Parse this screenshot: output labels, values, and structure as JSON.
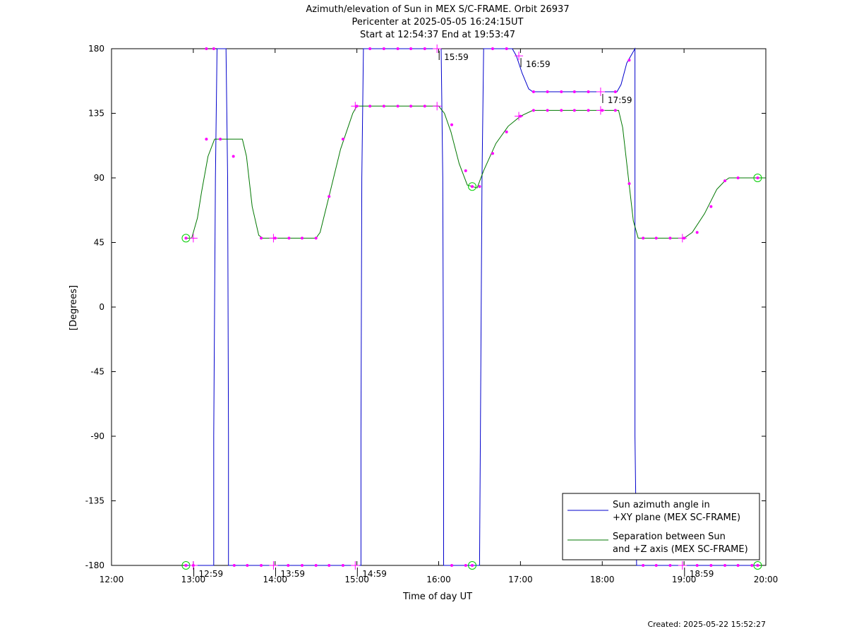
{
  "chart_data": {
    "type": "line",
    "title_lines": [
      "Azimuth/elevation of Sun in MEX S/C-FRAME.  Orbit 26937",
      "Pericenter at 2025-05-05 16:24:15UT",
      "Start at 12:54:37 End at 19:53:47"
    ],
    "xlabel": "Time of day UT",
    "ylabel": "[Degrees]",
    "xlim": [
      12.0,
      20.0
    ],
    "ylim": [
      -180,
      180
    ],
    "xticks": [
      12,
      13,
      14,
      15,
      16,
      17,
      18,
      19,
      20
    ],
    "xtick_labels": [
      "12:00",
      "13:00",
      "14:00",
      "15:00",
      "16:00",
      "17:00",
      "18:00",
      "19:00",
      "20:00"
    ],
    "yticks": [
      180,
      135,
      90,
      45,
      0,
      -45,
      -90,
      -135,
      -180
    ],
    "ytick_labels": [
      "180",
      "135",
      "90",
      "45",
      "0",
      "-45",
      "-90",
      "-135",
      "-180"
    ],
    "legend_position": "bottom-right",
    "series": [
      {
        "name": "Sun azimuth angle in +XY plane (MEX SC-FRAME)",
        "color": "#0000cc",
        "points": [
          [
            12.91,
            -180
          ],
          [
            13.25,
            -180
          ],
          [
            13.25,
            -90
          ],
          [
            13.27,
            90
          ],
          [
            13.29,
            180
          ],
          [
            13.4,
            180
          ],
          [
            13.42,
            90
          ],
          [
            13.43,
            -90
          ],
          [
            13.43,
            -180
          ],
          [
            15.05,
            -180
          ],
          [
            15.05,
            -90
          ],
          [
            15.06,
            90
          ],
          [
            15.08,
            180
          ],
          [
            16.03,
            180
          ],
          [
            16.05,
            90
          ],
          [
            16.06,
            -90
          ],
          [
            16.06,
            -180
          ],
          [
            16.5,
            -180
          ],
          [
            16.51,
            -90
          ],
          [
            16.53,
            90
          ],
          [
            16.55,
            180
          ],
          [
            16.9,
            180
          ],
          [
            16.95,
            175
          ],
          [
            17.02,
            163
          ],
          [
            17.1,
            152
          ],
          [
            17.15,
            150
          ],
          [
            18.18,
            150
          ],
          [
            18.23,
            155
          ],
          [
            18.3,
            170
          ],
          [
            18.4,
            180
          ],
          [
            18.4,
            -90
          ],
          [
            18.42,
            -180
          ],
          [
            19.91,
            -180
          ]
        ]
      },
      {
        "name": "Separation between Sun and +Z axis (MEX SC-FRAME)",
        "color": "#007700",
        "points": [
          [
            12.91,
            48
          ],
          [
            12.98,
            48
          ],
          [
            13.05,
            62
          ],
          [
            13.1,
            80
          ],
          [
            13.18,
            105
          ],
          [
            13.26,
            117
          ],
          [
            13.6,
            117
          ],
          [
            13.65,
            105
          ],
          [
            13.72,
            70
          ],
          [
            13.8,
            50
          ],
          [
            13.85,
            48
          ],
          [
            14.5,
            48
          ],
          [
            14.55,
            52
          ],
          [
            14.65,
            75
          ],
          [
            14.8,
            110
          ],
          [
            14.95,
            135
          ],
          [
            15.0,
            140
          ],
          [
            16.0,
            140
          ],
          [
            16.07,
            135
          ],
          [
            16.15,
            122
          ],
          [
            16.25,
            100
          ],
          [
            16.35,
            85
          ],
          [
            16.47,
            83
          ],
          [
            16.55,
            95
          ],
          [
            16.7,
            114
          ],
          [
            16.85,
            126
          ],
          [
            17.0,
            133
          ],
          [
            17.15,
            137
          ],
          [
            18.2,
            137
          ],
          [
            18.25,
            125
          ],
          [
            18.32,
            90
          ],
          [
            18.38,
            60
          ],
          [
            18.44,
            48
          ],
          [
            19.0,
            48
          ],
          [
            19.1,
            52
          ],
          [
            19.25,
            65
          ],
          [
            19.4,
            82
          ],
          [
            19.5,
            88
          ],
          [
            19.55,
            90
          ],
          [
            20.0,
            90
          ]
        ]
      }
    ],
    "markers": [
      [
        13.16,
        117
      ],
      [
        13.33,
        117
      ],
      [
        13.25,
        180
      ],
      [
        13.49,
        105
      ],
      [
        13.83,
        48
      ],
      [
        14.0,
        48
      ],
      [
        14.17,
        48
      ],
      [
        14.33,
        48
      ],
      [
        14.5,
        48
      ],
      [
        14.66,
        77
      ],
      [
        14.83,
        117
      ],
      [
        15.0,
        140
      ],
      [
        15.16,
        140
      ],
      [
        15.33,
        140
      ],
      [
        15.5,
        140
      ],
      [
        15.66,
        140
      ],
      [
        15.83,
        140
      ],
      [
        16.16,
        127
      ],
      [
        16.33,
        95
      ],
      [
        16.5,
        84
      ],
      [
        16.66,
        107
      ],
      [
        16.83,
        122
      ],
      [
        17.0,
        133
      ],
      [
        17.16,
        137
      ],
      [
        17.33,
        137
      ],
      [
        17.5,
        137
      ],
      [
        17.66,
        137
      ],
      [
        17.83,
        137
      ],
      [
        18.0,
        137
      ],
      [
        18.16,
        137
      ],
      [
        18.33,
        86
      ],
      [
        18.5,
        48
      ],
      [
        18.66,
        48
      ],
      [
        18.83,
        48
      ],
      [
        19.0,
        48
      ],
      [
        19.16,
        52
      ],
      [
        19.33,
        70
      ],
      [
        19.5,
        88
      ],
      [
        19.66,
        90
      ],
      [
        13.16,
        180
      ],
      [
        15.16,
        180
      ],
      [
        15.33,
        180
      ],
      [
        15.5,
        180
      ],
      [
        15.66,
        180
      ],
      [
        15.83,
        180
      ],
      [
        16.66,
        180
      ],
      [
        16.83,
        180
      ],
      [
        17.16,
        150
      ],
      [
        17.33,
        150
      ],
      [
        17.5,
        150
      ],
      [
        17.66,
        150
      ],
      [
        17.83,
        150
      ],
      [
        18.16,
        150
      ],
      [
        18.33,
        172
      ],
      [
        13.5,
        -180
      ],
      [
        13.66,
        -180
      ],
      [
        13.83,
        -180
      ],
      [
        14.16,
        -180
      ],
      [
        14.33,
        -180
      ],
      [
        14.5,
        -180
      ],
      [
        14.66,
        -180
      ],
      [
        14.83,
        -180
      ],
      [
        16.16,
        -180
      ],
      [
        16.33,
        -180
      ],
      [
        18.5,
        -180
      ],
      [
        18.66,
        -180
      ],
      [
        18.83,
        -180
      ],
      [
        19.16,
        -180
      ],
      [
        19.33,
        -180
      ],
      [
        19.5,
        -180
      ],
      [
        19.66,
        -180
      ],
      [
        19.83,
        -180
      ],
      [
        13.0,
        -180
      ]
    ],
    "crosses": [
      [
        13.0,
        48
      ],
      [
        13.0,
        -180
      ],
      [
        13.98,
        48
      ],
      [
        13.98,
        -180
      ],
      [
        14.98,
        140
      ],
      [
        14.98,
        -180
      ],
      [
        15.98,
        140
      ],
      [
        15.98,
        180
      ],
      [
        16.98,
        175
      ],
      [
        16.98,
        133
      ],
      [
        17.98,
        150
      ],
      [
        17.98,
        137
      ],
      [
        18.98,
        48
      ],
      [
        18.98,
        -180
      ]
    ],
    "circles": [
      [
        12.91,
        48
      ],
      [
        12.91,
        -180
      ],
      [
        16.41,
        84
      ],
      [
        16.41,
        -180
      ],
      [
        19.9,
        90
      ],
      [
        19.9,
        -180
      ]
    ],
    "hour_annotations": [
      {
        "label": "12:59",
        "x": 12.98,
        "y": -180
      },
      {
        "label": "13:59",
        "x": 13.98,
        "y": -180
      },
      {
        "label": "14:59",
        "x": 14.98,
        "y": -180
      },
      {
        "label": "15:59",
        "x": 15.98,
        "y": 180
      },
      {
        "label": "16:59",
        "x": 16.98,
        "y": 175
      },
      {
        "label": "17:59",
        "x": 17.98,
        "y": 150
      },
      {
        "label": "18:59",
        "x": 18.98,
        "y": -180
      }
    ]
  },
  "footer": {
    "created": "Created: 2025-05-22 15:52:27"
  }
}
